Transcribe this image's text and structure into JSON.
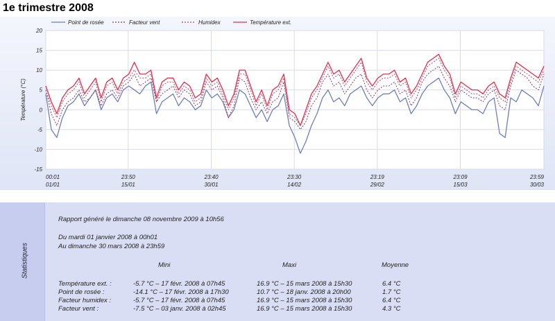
{
  "page": {
    "title": "1e trimestre 2008"
  },
  "chart_data": {
    "type": "line",
    "title": "",
    "ylabel": "Température (°C)",
    "ylim": [
      -15,
      20
    ],
    "yticks": [
      -15,
      -10,
      -5,
      0,
      5,
      10,
      15,
      20
    ],
    "xlim": [
      0,
      90
    ],
    "xticks": [
      {
        "x": 0,
        "time": "00:01",
        "date": "01/01"
      },
      {
        "x": 14.9,
        "time": "23:50",
        "date": "15/01"
      },
      {
        "x": 29.9,
        "time": "23:40",
        "date": "30/01"
      },
      {
        "x": 44.9,
        "time": "23:30",
        "date": "14/02"
      },
      {
        "x": 59.9,
        "time": "23:19",
        "date": "29/02"
      },
      {
        "x": 74.9,
        "time": "23:09",
        "date": "15/03"
      },
      {
        "x": 90.0,
        "time": "23:59",
        "date": "30/03"
      }
    ],
    "grid": true,
    "legend_position": "top-left",
    "x": [
      0,
      1,
      2,
      3,
      4,
      5,
      6,
      7,
      8,
      9,
      10,
      11,
      12,
      13,
      14,
      15,
      16,
      17,
      18,
      19,
      20,
      21,
      22,
      23,
      24,
      25,
      26,
      27,
      28,
      29,
      30,
      31,
      32,
      33,
      34,
      35,
      36,
      37,
      38,
      39,
      40,
      41,
      42,
      43,
      44,
      45,
      46,
      47,
      48,
      49,
      50,
      51,
      52,
      53,
      54,
      55,
      56,
      57,
      58,
      59,
      60,
      61,
      62,
      63,
      64,
      65,
      66,
      67,
      68,
      69,
      70,
      71,
      72,
      73,
      74,
      75,
      76,
      77,
      78,
      79,
      80,
      81,
      82,
      83,
      84,
      85,
      86,
      87,
      88,
      89,
      90
    ],
    "series": [
      {
        "name": "Point de rosée",
        "color": "#6f7fb5",
        "dash": "",
        "values": [
          4,
          -5,
          -7,
          -2,
          1,
          2,
          4,
          1,
          3,
          5,
          0,
          3,
          4,
          2,
          5,
          6,
          5,
          4,
          6,
          7,
          -1,
          2,
          3,
          4,
          1,
          3,
          2,
          0,
          1,
          5,
          3,
          4,
          2,
          -2,
          0,
          5,
          4,
          1,
          -2,
          0,
          -3,
          0,
          1,
          4,
          -4,
          -7,
          -11,
          -8,
          -4,
          -1,
          3,
          5,
          2,
          3,
          1,
          4,
          5,
          6,
          3,
          1,
          3,
          4,
          4,
          5,
          2,
          3,
          -1,
          1,
          4,
          6,
          7,
          8,
          5,
          3,
          -1,
          2,
          1,
          0,
          0,
          -1,
          2,
          3,
          -6,
          -7,
          3,
          2,
          5,
          4,
          3,
          1,
          6
        ]
      },
      {
        "name": "Facteur vent",
        "color": "#8a3a66",
        "dash": "2,2",
        "values": [
          5,
          -1,
          -4,
          0,
          2,
          3,
          5,
          2,
          3,
          5,
          1,
          4,
          5,
          3,
          6,
          7,
          9,
          6,
          7,
          8,
          2,
          4,
          5,
          6,
          3,
          5,
          4,
          1,
          2,
          7,
          5,
          6,
          3,
          -2,
          1,
          8,
          7,
          3,
          0,
          2,
          -1,
          2,
          3,
          7,
          -2,
          -3,
          -5,
          -3,
          1,
          3,
          7,
          9,
          6,
          7,
          4,
          6,
          8,
          9,
          5,
          3,
          5,
          6,
          6,
          7,
          4,
          5,
          1,
          3,
          7,
          9,
          10,
          11,
          8,
          6,
          2,
          5,
          4,
          3,
          3,
          2,
          4,
          5,
          1,
          0,
          6,
          10,
          9,
          8,
          6,
          5,
          9
        ]
      },
      {
        "name": "Humidex",
        "color": "#b04a6a",
        "dash": "2,2",
        "values": [
          5,
          1,
          -2,
          2,
          4,
          5,
          7,
          3,
          5,
          7,
          2,
          6,
          7,
          4,
          7,
          8,
          10,
          8,
          8,
          9,
          2,
          6,
          7,
          7,
          4,
          6,
          5,
          2,
          3,
          8,
          6,
          7,
          4,
          0,
          3,
          9,
          9,
          5,
          1,
          4,
          0,
          4,
          5,
          8,
          -1,
          -2,
          -4,
          -1,
          3,
          5,
          8,
          11,
          8,
          9,
          6,
          8,
          10,
          12,
          7,
          5,
          7,
          8,
          8,
          9,
          6,
          7,
          3,
          5,
          8,
          11,
          12,
          13,
          10,
          8,
          3,
          6,
          5,
          4,
          4,
          3,
          5,
          6,
          3,
          2,
          7,
          11,
          10,
          9,
          8,
          7,
          10
        ]
      },
      {
        "name": "Température ext.",
        "color": "#e0304a",
        "dash": "",
        "values": [
          6,
          2,
          -1,
          3,
          5,
          6,
          8,
          4,
          6,
          8,
          3,
          7,
          8,
          5,
          8,
          9,
          12,
          9,
          9,
          10,
          3,
          7,
          8,
          8,
          5,
          7,
          6,
          3,
          4,
          9,
          7,
          8,
          5,
          1,
          4,
          10,
          10,
          6,
          2,
          5,
          1,
          5,
          6,
          9,
          0,
          -1,
          -4,
          0,
          4,
          6,
          9,
          12,
          9,
          10,
          7,
          9,
          11,
          13,
          8,
          6,
          8,
          9,
          9,
          10,
          7,
          8,
          4,
          6,
          9,
          12,
          13,
          14,
          11,
          9,
          4,
          7,
          6,
          5,
          5,
          4,
          6,
          7,
          4,
          3,
          8,
          12,
          11,
          10,
          9,
          8,
          11
        ]
      }
    ]
  },
  "stats": {
    "side_label": "Statistiques",
    "report_line": "Rapport généré le dimanche 08 novembre 2009 à 10h56",
    "period_from": "Du mardi 01 janvier 2008 à 00h01",
    "period_to": "Au dimanche 30 mars 2008 à 23h59",
    "headers": {
      "min": "Mini",
      "max": "Maxi",
      "avg": "Moyenne"
    },
    "rows": [
      {
        "label": "Température ext. :",
        "min": "-5.7 °C – 17 févr. 2008 à 07h45",
        "max": "16.9 °C – 15 mars 2008 à 15h30",
        "avg": "6.4 °C"
      },
      {
        "label": "Point de rosée :",
        "min": "-14.1 °C – 17 févr. 2008 à 17h30",
        "max": "10.7 °C – 18 janv. 2008 à 20h00",
        "avg": "1.7 °C"
      },
      {
        "label": "Facteur humidex :",
        "min": "-5.7 °C – 17 févr. 2008 à 07h45",
        "max": "16.9 °C – 15 mars 2008 à 15h30",
        "avg": "6.4 °C"
      },
      {
        "label": "Facteur vent :",
        "min": "-7.5 °C – 03 janv. 2008 à 02h45",
        "max": "16.9 °C – 15 mars 2008 à 15h30",
        "avg": "4.3 °C"
      }
    ]
  }
}
